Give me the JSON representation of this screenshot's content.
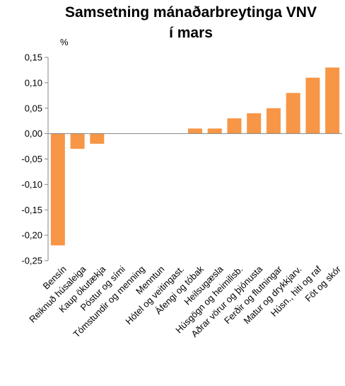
{
  "chart_data": {
    "type": "bar",
    "title_line1": "Samsetning mánaðarbreytinga VNV",
    "title_line2": "í mars",
    "xlabel": "",
    "ylabel": "%",
    "ylim": [
      -0.25,
      0.15
    ],
    "yticks": [
      "0,15",
      "0,10",
      "0,05",
      "0,00",
      "-0,05",
      "-0,10",
      "-0,15",
      "-0,20",
      "-0,25"
    ],
    "ytick_values": [
      0.15,
      0.1,
      0.05,
      0.0,
      -0.05,
      -0.1,
      -0.15,
      -0.2,
      -0.25
    ],
    "grid": false,
    "bar_color": "#F79646",
    "categories": [
      "Bensín",
      "Reiknuð húsaleiga",
      "Kaup ökutækja",
      "Póstur og sími",
      "Tómstundir og menning",
      "Menntun",
      "Hótel og veitingast.",
      "Áfengi og tóbak",
      "Heilsugæsla",
      "Húsgögn og heimilisb.",
      "Aðrar vörur og þjónusta",
      "Ferðir og flutningar",
      "Matur og drykkjarv.",
      "Húsn., hiti og raf",
      "Föt og skór"
    ],
    "values": [
      -0.22,
      -0.03,
      -0.02,
      0.0,
      0.0,
      0.0,
      0.0,
      0.01,
      0.01,
      0.03,
      0.04,
      0.05,
      0.08,
      0.11,
      0.13
    ]
  }
}
